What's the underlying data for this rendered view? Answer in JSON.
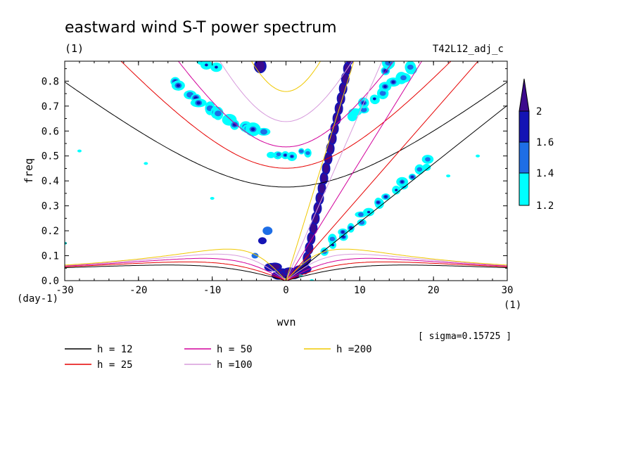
{
  "chart_data": {
    "type": "heatmap",
    "title": "eastward wind S-T power spectrum",
    "subtitle_left": "(1)",
    "subtitle_right": "T42L12_adj_c",
    "xlabel": "wvn",
    "ylabel": "freq",
    "x_unit": "(1)",
    "y_unit": "(day-1)",
    "xlim": [
      -30,
      30
    ],
    "ylim": [
      0,
      0.88
    ],
    "x_ticks": [
      "-30",
      "-20",
      "-10",
      "0",
      "10",
      "20",
      "30"
    ],
    "y_ticks": [
      "0.0",
      "0.1",
      "0.2",
      "0.3",
      "0.4",
      "0.5",
      "0.6",
      "0.7",
      "0.8"
    ],
    "note": "[ sigma=0.15725 ]",
    "colorbar": {
      "levels": [
        "1.2",
        "1.4",
        "1.6",
        "2"
      ],
      "colors": [
        "#00ffff",
        "#1e6ee6",
        "#1414b4",
        "#3c0a8c"
      ]
    },
    "dispersion_curves": [
      {
        "label": "h = 12",
        "color": "#000000"
      },
      {
        "label": "h = 25",
        "color": "#e60000"
      },
      {
        "label": "h = 50",
        "color": "#d2009b"
      },
      {
        "label": "h =100",
        "color": "#d79bdc"
      },
      {
        "label": "h =200",
        "color": "#f0c800"
      }
    ]
  }
}
